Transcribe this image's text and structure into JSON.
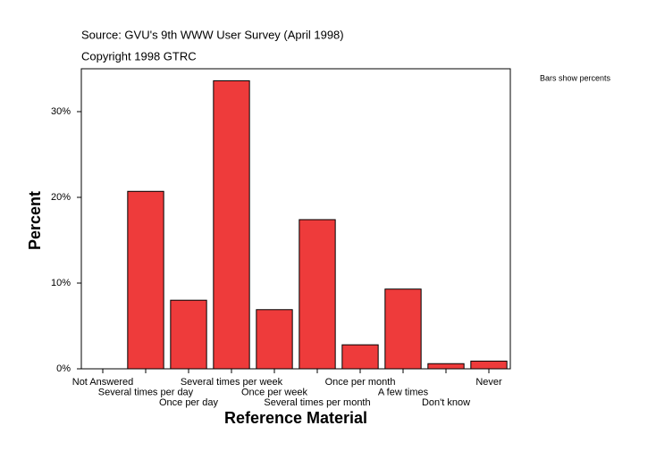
{
  "chart_data": {
    "type": "bar",
    "title": "Source: GVU's 9th WWW User Survey (April 1998)",
    "subtitle": "Copyright 1998 GTRC",
    "annotation": "Bars show percents",
    "x_label": "Reference Material",
    "y_label": "Percent",
    "categories": [
      "Not Answered",
      "Several times per day",
      "Once per day",
      "Several times per week",
      "Once per week",
      "Several times per month",
      "Once per month",
      "A few times",
      "Don't know",
      "Never"
    ],
    "values": [
      0,
      20.7,
      8.0,
      33.6,
      6.9,
      17.4,
      2.8,
      9.3,
      0.6,
      0.9
    ],
    "color": "#ee3b3b",
    "ylim": [
      0,
      35
    ],
    "yticks": [
      {
        "value": 0,
        "label": "0%"
      },
      {
        "value": 10,
        "label": "10%"
      },
      {
        "value": 20,
        "label": "20%"
      },
      {
        "value": 30,
        "label": "30%"
      }
    ]
  }
}
